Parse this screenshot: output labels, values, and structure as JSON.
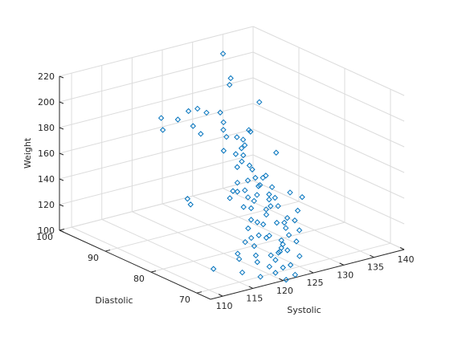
{
  "chart_data": {
    "type": "scatter",
    "title": "",
    "xlabel": "Systolic",
    "ylabel": "Diastolic",
    "zlabel": "Weight",
    "xlim": [
      108,
      140
    ],
    "ylim": [
      67,
      100
    ],
    "zlim": [
      100,
      220
    ],
    "xticks": [
      110,
      115,
      120,
      125,
      130,
      135,
      140
    ],
    "yticks": [
      70,
      80,
      90,
      100
    ],
    "zticks": [
      100,
      120,
      140,
      160,
      180,
      200,
      220
    ],
    "grid": true,
    "marker": "diamond",
    "color": "#0072bd",
    "points": [
      [
        124,
        84,
        220
      ],
      [
        132,
        96,
        215
      ],
      [
        131,
        93,
        202
      ],
      [
        121,
        89,
        195
      ],
      [
        124,
        91,
        190
      ],
      [
        123,
        84,
        192
      ],
      [
        118,
        91,
        190
      ],
      [
        120,
        90,
        188
      ],
      [
        120,
        85,
        185
      ],
      [
        116,
        88,
        188
      ],
      [
        121,
        88,
        185
      ],
      [
        127,
        90,
        185
      ],
      [
        127,
        93,
        180
      ],
      [
        120,
        80,
        180
      ],
      [
        126,
        88,
        176
      ],
      [
        122,
        80,
        175
      ],
      [
        125,
        82,
        175
      ],
      [
        125,
        86,
        175
      ],
      [
        122,
        77,
        171
      ],
      [
        127,
        85,
        172
      ],
      [
        124,
        81,
        170
      ],
      [
        123,
        80,
        168
      ],
      [
        129,
        89,
        165
      ],
      [
        138,
        96,
        170
      ],
      [
        111,
        76,
        160
      ],
      [
        110,
        74,
        160
      ],
      [
        123,
        81,
        162
      ],
      [
        120,
        77,
        160
      ],
      [
        117,
        74,
        162
      ],
      [
        132,
        90,
        164
      ],
      [
        129,
        88,
        158
      ],
      [
        134,
        93,
        158
      ],
      [
        118,
        76,
        152
      ],
      [
        120,
        77,
        153
      ],
      [
        124,
        80,
        152
      ],
      [
        122,
        78,
        150
      ],
      [
        118,
        73,
        150
      ],
      [
        127,
        83,
        152
      ],
      [
        121,
        76,
        149
      ],
      [
        125,
        79,
        148
      ],
      [
        126,
        81,
        150
      ],
      [
        120,
        74,
        145
      ],
      [
        122,
        76,
        145
      ],
      [
        124,
        78,
        144
      ],
      [
        126,
        80,
        146
      ],
      [
        128,
        82,
        146
      ],
      [
        118,
        70,
        143
      ],
      [
        121,
        72,
        142
      ],
      [
        126,
        78,
        142
      ],
      [
        128,
        80,
        142
      ],
      [
        130,
        84,
        142
      ],
      [
        137,
        91,
        140
      ],
      [
        118,
        72,
        135
      ],
      [
        117,
        70,
        132
      ],
      [
        120,
        74,
        136
      ],
      [
        124,
        76,
        136
      ],
      [
        126,
        78,
        138
      ],
      [
        114,
        69,
        125
      ],
      [
        116,
        70,
        130
      ],
      [
        119,
        71,
        130
      ],
      [
        122,
        74,
        130
      ],
      [
        127,
        79,
        130
      ],
      [
        130,
        82,
        128
      ],
      [
        117,
        69,
        120
      ],
      [
        121,
        72,
        124
      ],
      [
        125,
        75,
        126
      ],
      [
        129,
        80,
        126
      ],
      [
        134,
        84,
        124
      ],
      [
        110,
        69,
        118
      ],
      [
        115,
        70,
        118
      ],
      [
        119,
        72,
        120
      ],
      [
        123,
        74,
        120
      ],
      [
        127,
        76,
        122
      ],
      [
        129,
        78,
        120
      ],
      [
        133,
        81,
        116
      ],
      [
        136,
        84,
        118
      ],
      [
        114,
        68,
        112
      ],
      [
        118,
        70,
        112
      ],
      [
        121,
        71,
        112
      ],
      [
        125,
        74,
        114
      ],
      [
        127,
        75,
        114
      ],
      [
        128,
        77,
        115
      ],
      [
        131,
        79,
        114
      ],
      [
        121,
        70,
        110
      ],
      [
        123,
        72,
        110
      ],
      [
        124,
        73,
        108
      ],
      [
        125,
        74,
        108
      ],
      [
        126,
        75,
        108
      ],
      [
        131,
        78,
        108
      ],
      [
        117,
        68,
        105
      ],
      [
        120,
        70,
        106
      ],
      [
        126,
        74,
        105
      ],
      [
        129,
        76,
        105
      ],
      [
        121,
        70,
        100
      ],
      [
        123,
        71,
        100
      ],
      [
        125,
        72,
        98
      ],
      [
        128,
        74,
        98
      ],
      [
        122,
        69,
        95
      ],
      [
        125,
        71,
        92
      ]
    ]
  }
}
